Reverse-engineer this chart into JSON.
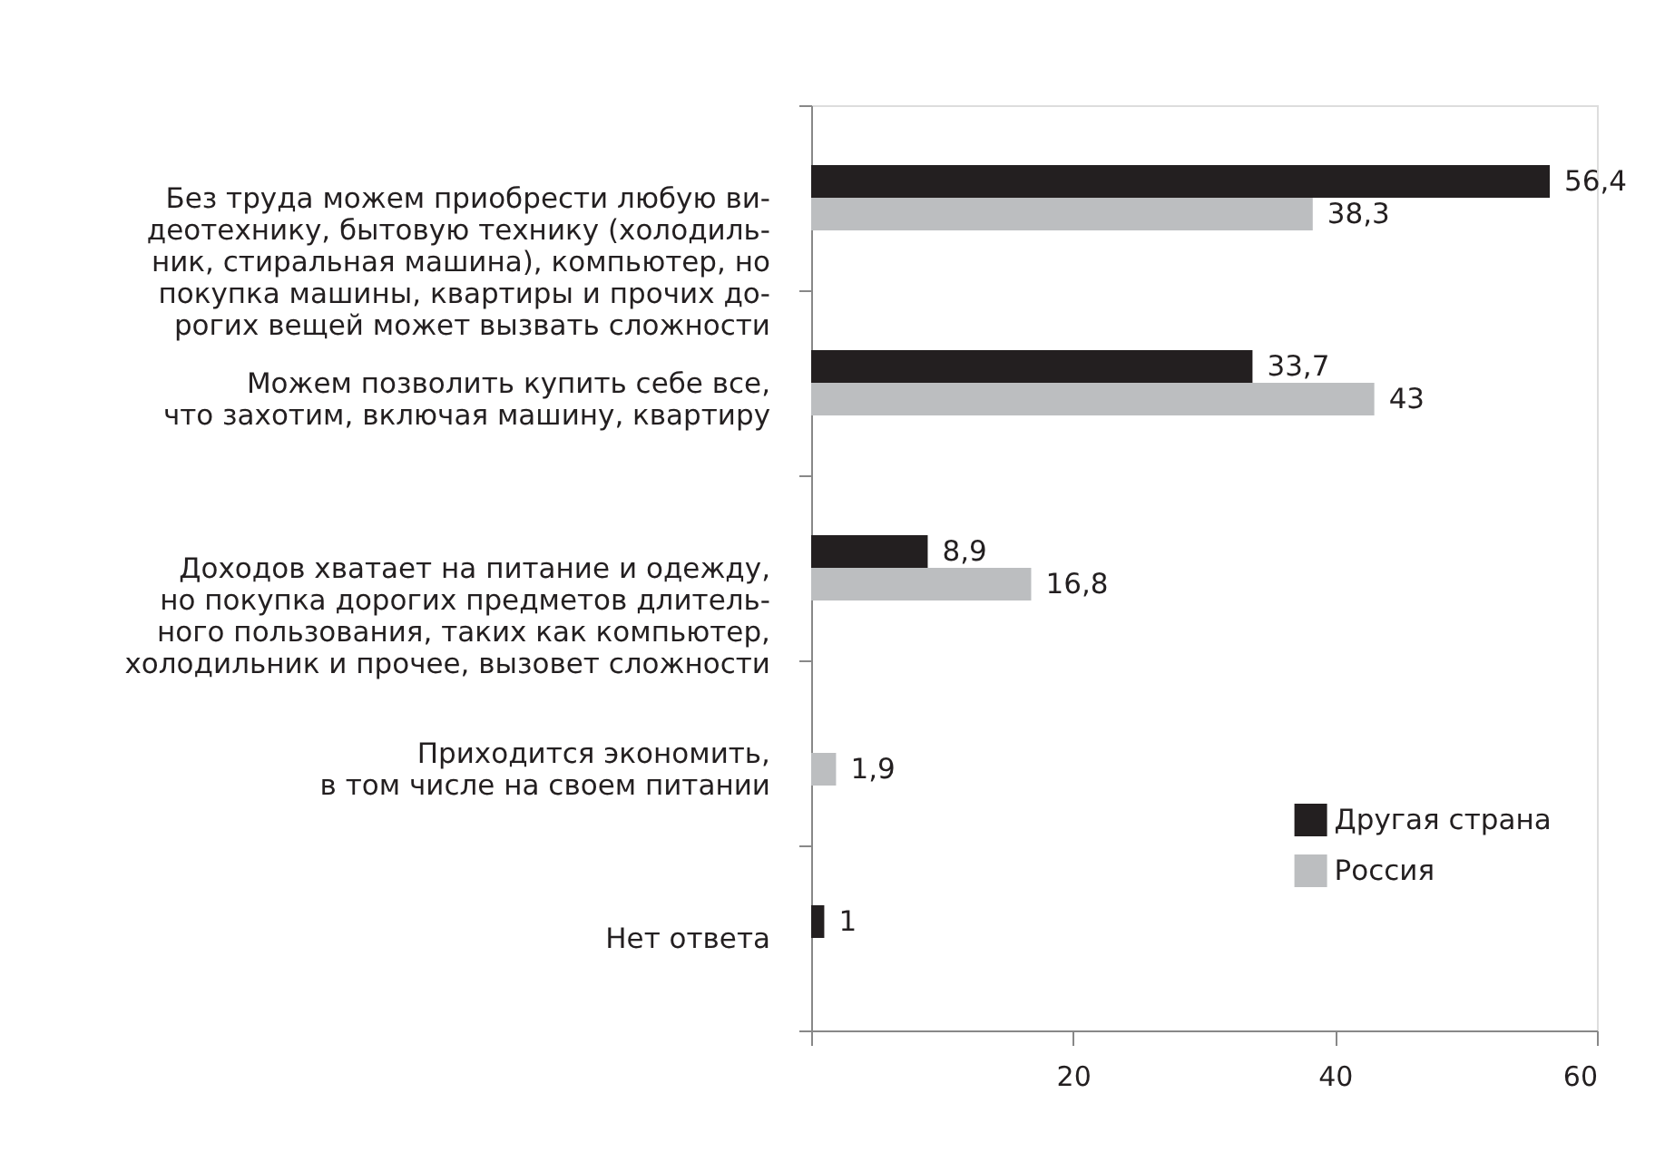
{
  "chart_data": {
    "type": "bar",
    "orientation": "horizontal",
    "categories": [
      "Без труда можем приобрести любую ви-\nдеотехнику, бытовую технику (холодиль-\nник, стиральная машина), компьютер, но\nпокупка машины, квартиры и прочих до-\nрогих вещей может вызвать сложности",
      "Можем позволить купить себе все,\nчто захотим, включая машину, квартиру",
      "Доходов хватает на питание и одежду,\nно покупка дорогих предметов длитель-\nного пользования, таких как компьютер,\nхолодильник и прочее, вызовет сложности",
      "Приходится экономить,\nв том числе на своем питании",
      "Нет ответа"
    ],
    "series": [
      {
        "name": "Другая страна",
        "color": "#231f20",
        "values": [
          56.4,
          33.7,
          8.9,
          null,
          1
        ],
        "value_labels": [
          "56,4",
          "33,7",
          "8,9",
          null,
          "1"
        ]
      },
      {
        "name": "Россия",
        "color": "#bcbec0",
        "values": [
          38.3,
          43,
          16.8,
          1.9,
          null
        ],
        "value_labels": [
          "38,3",
          "43",
          "16,8",
          "1,9",
          null
        ]
      }
    ],
    "xlim": [
      0,
      60
    ],
    "xticks": [
      {
        "value": 0,
        "label": null
      },
      20,
      40,
      60
    ],
    "legend": "bottom right"
  }
}
